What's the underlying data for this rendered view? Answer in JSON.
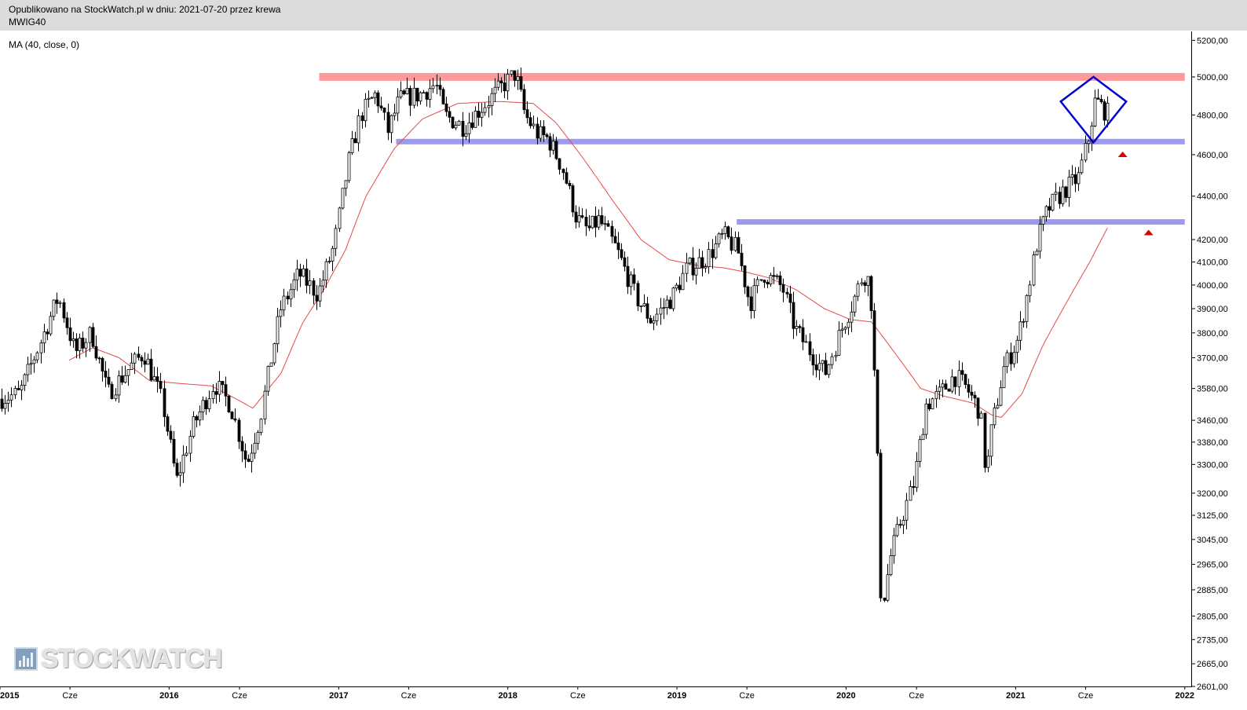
{
  "header": {
    "published": "Opublikowano na StockWatch.pl w dniu: 2021-07-20 przez krewa",
    "symbol": "MWIG40"
  },
  "indicator_label": "MA (40, close, 0)",
  "watermark": {
    "text": "STOCKWATCH",
    "icon": "bar-chart-logo-icon"
  },
  "colors": {
    "candle": "#000000",
    "ma_line": "#e44a4a",
    "resistance_band": "#ff9a9a",
    "support_band": "#9b9bf3",
    "pattern_marker": "#0000d0",
    "signal_arrow": "#dd0000"
  },
  "chart_data": {
    "type": "candlestick",
    "timeframe": "weekly",
    "series_name": "MWIG40",
    "y_scale": "log",
    "ylim": [
      2601,
      5250
    ],
    "xlim": [
      "2015-01-01",
      "2022-01-15"
    ],
    "y_ticks": [
      "5200,00",
      "5000,00",
      "4800,00",
      "4600,00",
      "4400,00",
      "4200,00",
      "4100,00",
      "4000,00",
      "3900,00",
      "3800,00",
      "3700,00",
      "3580,00",
      "3460,00",
      "3380,00",
      "3300,00",
      "3200,00",
      "3125,00",
      "3045,00",
      "2965,00",
      "2885,00",
      "2805,00",
      "2735,00",
      "2665,00",
      "2601,00"
    ],
    "x_ticks": [
      {
        "date": "2015-01-01",
        "label": "2015"
      },
      {
        "date": "2015-06-01",
        "label": "Cze"
      },
      {
        "date": "2016-01-01",
        "label": "2016"
      },
      {
        "date": "2016-06-01",
        "label": "Cze"
      },
      {
        "date": "2017-01-01",
        "label": "2017"
      },
      {
        "date": "2017-06-01",
        "label": "Cze"
      },
      {
        "date": "2018-01-01",
        "label": "2018"
      },
      {
        "date": "2018-06-01",
        "label": "Cze"
      },
      {
        "date": "2019-01-01",
        "label": "2019"
      },
      {
        "date": "2019-06-01",
        "label": "Cze"
      },
      {
        "date": "2020-01-01",
        "label": "2020"
      },
      {
        "date": "2020-06-01",
        "label": "Cze"
      },
      {
        "date": "2021-01-01",
        "label": "2021"
      },
      {
        "date": "2021-06-01",
        "label": "Cze"
      },
      {
        "date": "2022-01-01",
        "label": "2022"
      }
    ],
    "price_anchors": [
      [
        "2015-01-01",
        3540
      ],
      [
        "2015-02-15",
        3560
      ],
      [
        "2015-04-01",
        3760
      ],
      [
        "2015-05-10",
        3950
      ],
      [
        "2015-06-15",
        3720
      ],
      [
        "2015-07-20",
        3800
      ],
      [
        "2015-08-25",
        3560
      ],
      [
        "2015-10-01",
        3640
      ],
      [
        "2015-11-10",
        3720
      ],
      [
        "2015-12-20",
        3530
      ],
      [
        "2016-01-20",
        3240
      ],
      [
        "2016-02-25",
        3440
      ],
      [
        "2016-04-10",
        3600
      ],
      [
        "2016-05-15",
        3520
      ],
      [
        "2016-06-20",
        3300
      ],
      [
        "2016-07-20",
        3480
      ],
      [
        "2016-09-01",
        3900
      ],
      [
        "2016-10-10",
        4050
      ],
      [
        "2016-11-20",
        3960
      ],
      [
        "2016-12-25",
        4170
      ],
      [
        "2017-01-25",
        4560
      ],
      [
        "2017-02-20",
        4800
      ],
      [
        "2017-03-25",
        4910
      ],
      [
        "2017-04-20",
        4720
      ],
      [
        "2017-05-15",
        4880
      ],
      [
        "2017-06-30",
        4910
      ],
      [
        "2017-08-01",
        4960
      ],
      [
        "2017-08-20",
        4800
      ],
      [
        "2017-09-30",
        4740
      ],
      [
        "2018-01-20",
        5020
      ],
      [
        "2018-02-10",
        4800
      ],
      [
        "2018-03-10",
        4700
      ],
      [
        "2018-04-01",
        4680
      ],
      [
        "2018-05-01",
        4540
      ],
      [
        "2018-06-01",
        4300
      ],
      [
        "2018-06-25",
        4240
      ],
      [
        "2018-07-20",
        4290
      ],
      [
        "2018-08-25",
        4160
      ],
      [
        "2018-10-10",
        3940
      ],
      [
        "2018-11-10",
        3850
      ],
      [
        "2018-12-25",
        3950
      ],
      [
        "2019-01-25",
        4070
      ],
      [
        "2019-03-10",
        4120
      ],
      [
        "2019-04-15",
        4220
      ],
      [
        "2019-05-15",
        4150
      ],
      [
        "2019-06-10",
        3920
      ],
      [
        "2019-07-10",
        4050
      ],
      [
        "2019-08-20",
        3990
      ],
      [
        "2019-09-15",
        3820
      ],
      [
        "2019-10-20",
        3720
      ],
      [
        "2019-11-20",
        3640
      ],
      [
        "2019-12-30",
        3840
      ],
      [
        "2020-01-20",
        3930
      ],
      [
        "2020-02-10",
        4050
      ],
      [
        "2020-02-25",
        4010
      ],
      [
        "2020-03-10",
        3430
      ],
      [
        "2020-03-20",
        2820
      ],
      [
        "2020-04-10",
        3000
      ],
      [
        "2020-04-30",
        3100
      ],
      [
        "2020-05-30",
        3240
      ],
      [
        "2020-06-25",
        3520
      ],
      [
        "2020-07-25",
        3560
      ],
      [
        "2020-08-25",
        3630
      ],
      [
        "2020-09-20",
        3580
      ],
      [
        "2020-10-20",
        3490
      ],
      [
        "2020-11-01",
        3250
      ],
      [
        "2020-11-10",
        3400
      ],
      [
        "2020-12-10",
        3660
      ],
      [
        "2021-01-10",
        3780
      ],
      [
        "2021-02-01",
        3990
      ],
      [
        "2021-02-20",
        4200
      ],
      [
        "2021-03-15",
        4340
      ],
      [
        "2021-04-15",
        4420
      ],
      [
        "2021-05-20",
        4490
      ],
      [
        "2021-06-10",
        4680
      ],
      [
        "2021-06-25",
        4880
      ],
      [
        "2021-07-20",
        4810
      ]
    ],
    "ma_anchors": [
      [
        "2015-05-30",
        3690
      ],
      [
        "2015-07-20",
        3740
      ],
      [
        "2015-09-15",
        3700
      ],
      [
        "2015-11-20",
        3610
      ],
      [
        "2016-01-20",
        3600
      ],
      [
        "2016-04-01",
        3590
      ],
      [
        "2016-05-30",
        3535
      ],
      [
        "2016-06-30",
        3505
      ],
      [
        "2016-08-30",
        3640
      ],
      [
        "2016-10-15",
        3840
      ],
      [
        "2016-11-30",
        3980
      ],
      [
        "2017-01-15",
        4150
      ],
      [
        "2017-03-01",
        4400
      ],
      [
        "2017-05-01",
        4630
      ],
      [
        "2017-07-01",
        4780
      ],
      [
        "2017-09-15",
        4860
      ],
      [
        "2017-12-15",
        4870
      ],
      [
        "2018-02-25",
        4860
      ],
      [
        "2018-04-15",
        4760
      ],
      [
        "2018-06-10",
        4590
      ],
      [
        "2018-08-15",
        4380
      ],
      [
        "2018-10-15",
        4200
      ],
      [
        "2018-12-15",
        4110
      ],
      [
        "2019-02-15",
        4085
      ],
      [
        "2019-04-10",
        4075
      ],
      [
        "2019-06-01",
        4055
      ],
      [
        "2019-07-20",
        4030
      ],
      [
        "2019-09-15",
        3980
      ],
      [
        "2019-11-15",
        3900
      ],
      [
        "2020-01-10",
        3855
      ],
      [
        "2020-02-25",
        3845
      ],
      [
        "2020-04-15",
        3720
      ],
      [
        "2020-06-10",
        3580
      ],
      [
        "2020-08-01",
        3550
      ],
      [
        "2020-09-30",
        3525
      ],
      [
        "2020-11-10",
        3480
      ],
      [
        "2020-12-01",
        3470
      ],
      [
        "2021-01-15",
        3560
      ],
      [
        "2021-03-01",
        3750
      ],
      [
        "2021-04-25",
        3940
      ],
      [
        "2021-06-10",
        4100
      ],
      [
        "2021-07-20",
        4260
      ]
    ],
    "annotations": [
      {
        "type": "band",
        "role": "resistance",
        "value": 5000,
        "from": "2016-11-20",
        "to": "2022-01-01"
      },
      {
        "type": "band",
        "role": "support",
        "value": 4665,
        "from": "2017-05-05",
        "to": "2022-01-01"
      },
      {
        "type": "band",
        "role": "support",
        "value": 4280,
        "from": "2019-05-10",
        "to": "2022-01-01"
      },
      {
        "type": "diamond",
        "role": "pattern",
        "center_date": "2021-06-18",
        "center_value": 4870,
        "from_value": 4760,
        "to_value": 5000
      },
      {
        "type": "arrow_up",
        "date": "2021-08-20",
        "value": 4600
      },
      {
        "type": "arrow_up",
        "date": "2021-10-15",
        "value": 4230
      }
    ]
  }
}
